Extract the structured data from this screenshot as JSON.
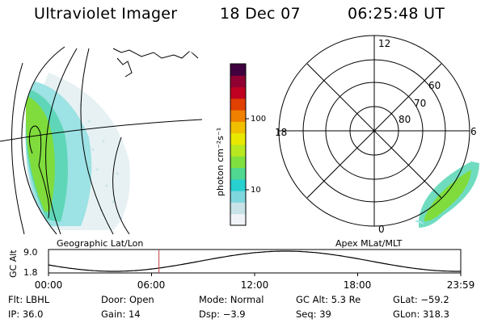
{
  "header": {
    "title": "Ultraviolet Imager",
    "date": "18 Dec 07",
    "time": "06:25:48 UT"
  },
  "colorbar": {
    "label": "photon cm⁻²s⁻¹",
    "ticks": [
      "100",
      "10"
    ],
    "colors": [
      "#f0f4f8",
      "#c7e3e8",
      "#7fd8de",
      "#28d0d0",
      "#50d890",
      "#80e040",
      "#b8e820",
      "#e8e800",
      "#f0c000",
      "#f08000",
      "#e04000",
      "#c00020",
      "#900030",
      "#400040"
    ]
  },
  "polar": {
    "hour_labels": [
      "12",
      "18",
      "6",
      "0"
    ],
    "lat_labels": [
      "60",
      "70",
      "80"
    ]
  },
  "captions": {
    "left": "Geographic Lat/Lon",
    "right": "Apex MLat/MLT"
  },
  "timeline": {
    "ylabel": "GC Alt",
    "ymax": "9.0",
    "ymin": "1.8",
    "ticks": [
      "00:00",
      "06:00",
      "12:00",
      "18:00",
      "23:59"
    ],
    "marker_hour": 6.43
  },
  "info": {
    "row1": [
      {
        "label": "Flt:",
        "value": "LBHL"
      },
      {
        "label": "Door:",
        "value": "Open"
      },
      {
        "label": "Mode:",
        "value": "Normal"
      },
      {
        "label": "GC Alt:",
        "value": "5.3 Re"
      },
      {
        "label": "GLat:",
        "value": "−59.2"
      }
    ],
    "row2": [
      {
        "label": "IP:",
        "value": "36.0"
      },
      {
        "label": "Gain:",
        "value": "14"
      },
      {
        "label": "Dsp:",
        "value": "−3.9"
      },
      {
        "label": "Seq:",
        "value": "39"
      },
      {
        "label": "GLon:",
        "value": "318.3"
      }
    ]
  },
  "colors": {
    "marker": "#c04040",
    "aurora_green": "#78dc3c",
    "aurora_cyan": "#40d0d0"
  }
}
